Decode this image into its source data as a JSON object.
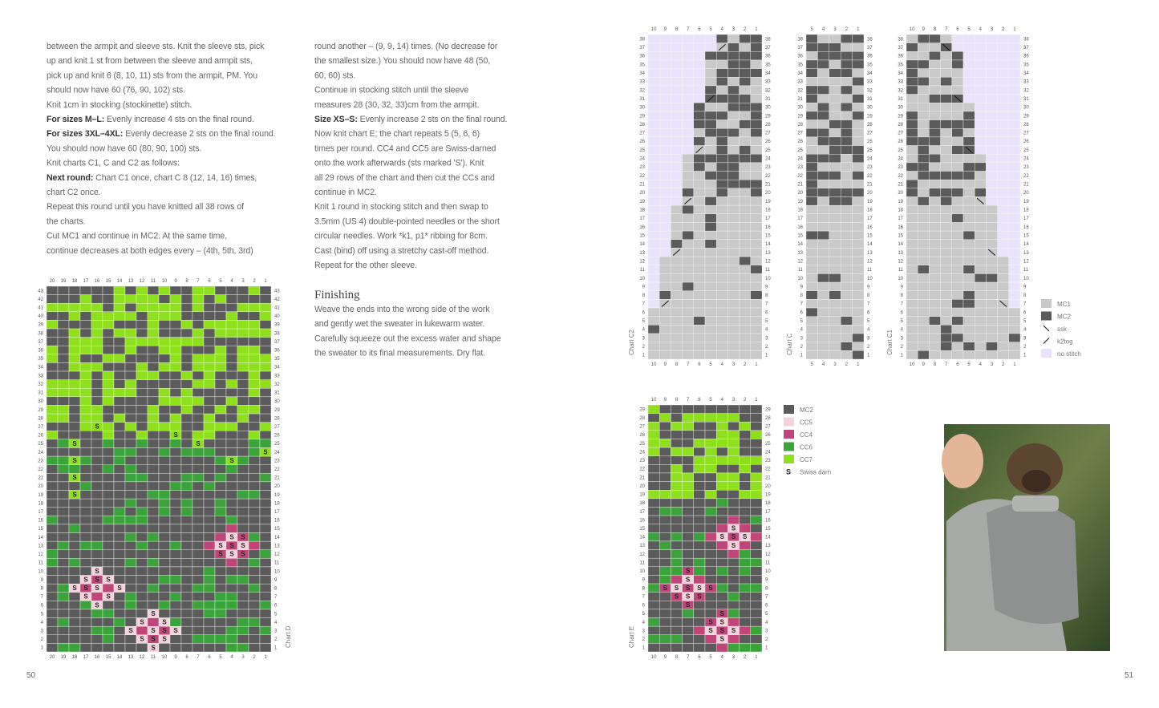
{
  "page_numbers": [
    "50",
    "51"
  ],
  "column1": [
    "between the armpit and sleeve sts. Knit the sleeve sts, pick",
    "up and knit 1 st from between the sleeve and armpit sts,",
    "pick up and knit 6 (8, 10, 11) sts from the armpit, PM. You",
    "should now have 60 (76, 90, 102) sts.",
    "Knit 1cm in stocking (stockinette) stitch.",
    {
      "bold": "For sizes M–L:",
      "text": " Evenly increase 4 sts on the final round."
    },
    {
      "bold": "For sizes 3XL–4XL:",
      "text": " Evenly decrease 2 sts on the final round."
    },
    "You should now have 60 (80, 90, 100) sts.",
    "Knit charts C1, C and C2 as follows:",
    {
      "bold": "Next round:",
      "text": " Chart C1 once, chart C 8 (12, 14, 16) times,"
    },
    "chart C2 once.",
    "Repeat this round until you have knitted all 38 rows of",
    "the charts.",
    "Cut MC1 and continue in MC2. At the same time,",
    "continue decreases at both edges every – (4th, 5th, 3rd)"
  ],
  "column2": [
    "round another – (9, 9, 14) times. (No decrease for",
    "the smallest size.) You should now have 48 (50,",
    "60, 60) sts.",
    "Continue in stocking stitch until the sleeve",
    "measures 28 (30, 32, 33)cm from the armpit.",
    {
      "bold": "Size XS–S:",
      "text": " Evenly increase 2 sts on the final round."
    },
    "Now knit chart E; the chart repeats 5 (5, 6, 6)",
    "times per round. CC4 and CC5 are Swiss-darned",
    "onto the work afterwards (sts marked 'S'). Knit",
    "all 29 rows of the chart and then cut the CCs and",
    "continue in MC2.",
    "Knit 1 round in stocking stitch and then swap to",
    "3.5mm (US 4) double-pointed needles or the short",
    "circular needles. Work *k1, p1* ribbing for 8cm.",
    "Cast (bind) off using a stretchy cast-off method.",
    "Repeat for the other sleeve."
  ],
  "finishing": {
    "heading": "Finishing",
    "lines": [
      "Weave the ends into the wrong side of the work",
      "and gently wet the sweater in lukewarm water.",
      "Carefully squeeze out the excess water and shape",
      "the sweater to its final measurements. Dry flat."
    ]
  },
  "charts": [
    {
      "name": "Chart D",
      "cols": [
        20,
        19,
        18,
        17,
        16,
        15,
        14,
        13,
        12,
        11,
        10,
        9,
        8,
        7,
        6,
        5,
        4,
        3,
        2,
        1
      ],
      "rows": [
        43,
        42,
        41,
        40,
        39,
        38,
        37,
        36,
        35,
        34,
        33,
        32,
        31,
        30,
        29,
        28,
        27,
        26,
        25,
        24,
        23,
        22,
        21,
        20,
        19,
        18,
        17,
        16,
        15,
        14,
        13,
        12,
        11,
        10,
        9,
        8,
        7,
        6,
        5,
        4,
        3,
        2,
        1
      ]
    },
    {
      "name": "Chart C2",
      "cols": [
        10,
        9,
        8,
        7,
        6,
        5,
        4,
        3,
        2,
        1
      ],
      "rows": [
        38,
        37,
        36,
        35,
        34,
        33,
        32,
        31,
        30,
        29,
        28,
        27,
        26,
        25,
        24,
        23,
        22,
        21,
        20,
        19,
        18,
        17,
        16,
        15,
        14,
        13,
        12,
        11,
        10,
        9,
        8,
        7,
        6,
        5,
        4,
        3,
        2,
        1
      ]
    },
    {
      "name": "Chart C",
      "cols": [
        5,
        4,
        3,
        2,
        1
      ],
      "rows": [
        38,
        37,
        36,
        35,
        34,
        33,
        32,
        31,
        30,
        29,
        28,
        27,
        26,
        25,
        24,
        23,
        22,
        21,
        20,
        19,
        18,
        17,
        16,
        15,
        14,
        13,
        12,
        11,
        10,
        9,
        8,
        7,
        6,
        5,
        4,
        3,
        2,
        1
      ]
    },
    {
      "name": "Chart C1",
      "cols": [
        10,
        9,
        8,
        7,
        6,
        5,
        4,
        3,
        2,
        1
      ],
      "rows": [
        38,
        37,
        36,
        35,
        34,
        33,
        32,
        31,
        30,
        29,
        28,
        27,
        26,
        25,
        24,
        23,
        22,
        21,
        20,
        19,
        18,
        17,
        16,
        15,
        14,
        13,
        12,
        11,
        10,
        9,
        8,
        7,
        6,
        5,
        4,
        3,
        2,
        1
      ]
    },
    {
      "name": "Chart E",
      "cols": [
        10,
        9,
        8,
        7,
        6,
        5,
        4,
        3,
        2,
        1
      ],
      "rows": [
        29,
        28,
        27,
        26,
        25,
        24,
        23,
        22,
        21,
        20,
        19,
        18,
        17,
        16,
        15,
        14,
        13,
        12,
        11,
        10,
        9,
        8,
        7,
        6,
        5,
        4,
        3,
        2,
        1
      ]
    }
  ],
  "legend_c": [
    {
      "label": "MC1",
      "color": "#c9c9c9"
    },
    {
      "label": "MC2",
      "color": "#5b5b5b"
    },
    {
      "label": "ssk"
    },
    {
      "label": "k2tog"
    },
    {
      "label": "no stitch",
      "color": "#e9e3fb"
    }
  ],
  "legend_e": [
    {
      "label": "MC2",
      "color": "#5b5b5b"
    },
    {
      "label": "CC5",
      "color": "#f4d3dd"
    },
    {
      "label": "CC4",
      "color": "#c0467a"
    },
    {
      "label": "CC6",
      "color": "#3aa33a"
    },
    {
      "label": "CC7",
      "color": "#8fe01c"
    },
    {
      "label": "Swiss darn",
      "symbol": "S"
    }
  ]
}
